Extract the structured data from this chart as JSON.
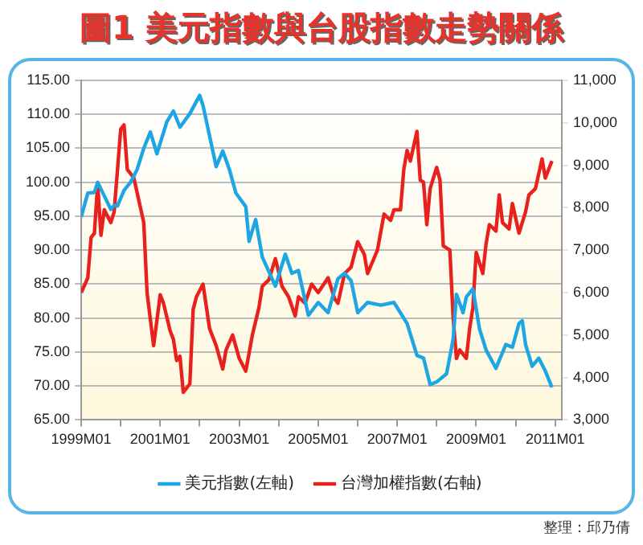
{
  "chart_data": {
    "type": "line",
    "title": "圖1 美元指數與台股指數走勢關係",
    "annotations": [
      "整理：邱乃倩"
    ],
    "xlim": [
      "1999-01",
      "2011-03"
    ],
    "xticks": [
      {
        "value": "1999-01",
        "label": "1999M01"
      },
      {
        "value": "2000-01",
        "label": null
      },
      {
        "value": "2001-01",
        "label": "2001M01"
      },
      {
        "value": "2002-01",
        "label": null
      },
      {
        "value": "2003-01",
        "label": "2003M01"
      },
      {
        "value": "2004-01",
        "label": null
      },
      {
        "value": "2005-01",
        "label": "2005M01"
      },
      {
        "value": "2006-01",
        "label": null
      },
      {
        "value": "2007-01",
        "label": "2007M01"
      },
      {
        "value": "2008-01",
        "label": null
      },
      {
        "value": "2009-01",
        "label": "2009M01"
      },
      {
        "value": "2010-01",
        "label": null
      },
      {
        "value": "2011-01",
        "label": "2011M01"
      }
    ],
    "ylim": [
      65,
      115
    ],
    "yticks": [
      {
        "value": 65,
        "label": "65.00"
      },
      {
        "value": 70,
        "label": "70.00"
      },
      {
        "value": 75,
        "label": "75.00"
      },
      {
        "value": 80,
        "label": "80.00"
      },
      {
        "value": 85,
        "label": "85.00"
      },
      {
        "value": 90,
        "label": "90.00"
      },
      {
        "value": 95,
        "label": "95.00"
      },
      {
        "value": 100,
        "label": "100.00"
      },
      {
        "value": 105,
        "label": "105.00"
      },
      {
        "value": 110,
        "label": "110.00"
      },
      {
        "value": 115,
        "label": "115.00"
      }
    ],
    "y2lim": [
      3000,
      11000
    ],
    "y2ticks": [
      {
        "value": 3000,
        "label": "3,000"
      },
      {
        "value": 4000,
        "label": "4,000"
      },
      {
        "value": 5000,
        "label": "5,000"
      },
      {
        "value": 6000,
        "label": "6,000"
      },
      {
        "value": 7000,
        "label": "7,000"
      },
      {
        "value": 8000,
        "label": "8,000"
      },
      {
        "value": 9000,
        "label": "9,000"
      },
      {
        "value": 10000,
        "label": "10,000"
      },
      {
        "value": 11000,
        "label": "11,000"
      }
    ],
    "grid": "y",
    "legend": "bottom",
    "marker": "none",
    "line_style": "solid",
    "series": [
      {
        "name": "美元指數(左軸)",
        "color": "#1ea6e4",
        "x": [
          "1999-01",
          "1999-03",
          "1999-05",
          "1999-06",
          "1999-08",
          "1999-10",
          "1999-11",
          "1999-12",
          "2000-02",
          "2000-04",
          "2000-06",
          "2000-08",
          "2000-10",
          "2000-12",
          "2001-03",
          "2001-05",
          "2001-07",
          "2001-10",
          "2002-01",
          "2002-02",
          "2002-06",
          "2002-08",
          "2002-10",
          "2002-12",
          "2003-03",
          "2003-04",
          "2003-06",
          "2003-08",
          "2003-12",
          "2004-03",
          "2004-05",
          "2004-07",
          "2004-10",
          "2005-01",
          "2005-04",
          "2005-07",
          "2005-09",
          "2005-11",
          "2006-01",
          "2006-04",
          "2006-08",
          "2006-12",
          "2007-04",
          "2007-07",
          "2007-09",
          "2007-11",
          "2008-01",
          "2008-04",
          "2008-06",
          "2008-07",
          "2008-09",
          "2008-10",
          "2008-12",
          "2009-02",
          "2009-04",
          "2009-07",
          "2009-10",
          "2009-12",
          "2010-02",
          "2010-03",
          "2010-04",
          "2010-06",
          "2010-08",
          "2010-10",
          "2010-12"
        ],
        "values": [
          94.9,
          98.4,
          98.5,
          100.0,
          98.0,
          96.0,
          96.6,
          96.5,
          98.8,
          100.0,
          101.9,
          105.0,
          107.4,
          104.2,
          108.9,
          110.5,
          108.1,
          110.1,
          112.8,
          111.3,
          102.3,
          104.6,
          101.9,
          98.4,
          96.4,
          91.3,
          94.5,
          89.0,
          84.7,
          89.4,
          86.6,
          87.0,
          80.4,
          82.3,
          80.8,
          85.8,
          86.6,
          85.5,
          80.8,
          82.3,
          81.9,
          82.3,
          79.2,
          74.5,
          74.1,
          70.2,
          70.6,
          71.8,
          76.9,
          83.5,
          80.8,
          83.1,
          84.3,
          78.4,
          75.3,
          72.6,
          76.1,
          75.7,
          79.2,
          79.6,
          76.1,
          72.9,
          74.1,
          72.2,
          69.8
        ]
      },
      {
        "name": "台灣加權指數(右軸)",
        "color": "#e8211c",
        "axis": "y2",
        "x": [
          "1999-01",
          "1999-03",
          "1999-04",
          "1999-05",
          "1999-06",
          "1999-07",
          "1999-08",
          "1999-10",
          "1999-11",
          "2000-01",
          "2000-02",
          "2000-03",
          "2000-05",
          "2000-08",
          "2000-09",
          "2000-11",
          "2001-01",
          "2001-02",
          "2001-04",
          "2001-05",
          "2001-06",
          "2001-07",
          "2001-08",
          "2001-10",
          "2001-11",
          "2001-12",
          "2002-02",
          "2002-04",
          "2002-06",
          "2002-08",
          "2002-09",
          "2002-11",
          "2003-01",
          "2003-03",
          "2003-05",
          "2003-07",
          "2003-08",
          "2003-10",
          "2003-12",
          "2004-02",
          "2004-04",
          "2004-06",
          "2004-07",
          "2004-09",
          "2004-11",
          "2005-01",
          "2005-04",
          "2005-06",
          "2005-07",
          "2005-09",
          "2005-11",
          "2006-01",
          "2006-03",
          "2006-04",
          "2006-07",
          "2006-09",
          "2006-11",
          "2006-12",
          "2007-02",
          "2007-03",
          "2007-04",
          "2007-05",
          "2007-07",
          "2007-08",
          "2007-09",
          "2007-10",
          "2007-11",
          "2008-01",
          "2008-02",
          "2008-03",
          "2008-05",
          "2008-06",
          "2008-07",
          "2008-08",
          "2008-10",
          "2008-11",
          "2008-12",
          "2009-01",
          "2009-03",
          "2009-04",
          "2009-05",
          "2009-07",
          "2009-08",
          "2009-09",
          "2009-11",
          "2009-12",
          "2010-02",
          "2010-04",
          "2010-05",
          "2010-07",
          "2010-09",
          "2010-10",
          "2010-12"
        ],
        "values": [
          6000,
          6350,
          7300,
          7400,
          8550,
          7350,
          7950,
          7650,
          7900,
          9850,
          9950,
          8900,
          8700,
          7650,
          6000,
          4750,
          5950,
          5750,
          5100,
          4900,
          4400,
          4500,
          3650,
          3850,
          5600,
          5900,
          6200,
          5150,
          4750,
          4200,
          4650,
          5000,
          4450,
          4150,
          5000,
          5650,
          6150,
          6300,
          6800,
          6150,
          5900,
          5450,
          5900,
          5750,
          6200,
          6000,
          6350,
          5850,
          5750,
          6450,
          6600,
          7200,
          6900,
          6450,
          7000,
          7850,
          7700,
          7950,
          7950,
          8900,
          9350,
          9100,
          9800,
          8650,
          8600,
          7600,
          8450,
          8950,
          8650,
          7100,
          7000,
          5400,
          4450,
          4650,
          4450,
          5150,
          5650,
          6950,
          6450,
          7150,
          7600,
          7450,
          8300,
          7650,
          7500,
          8100,
          7400,
          7900,
          8300,
          8450,
          9150,
          8700,
          9100
        ]
      }
    ]
  }
}
